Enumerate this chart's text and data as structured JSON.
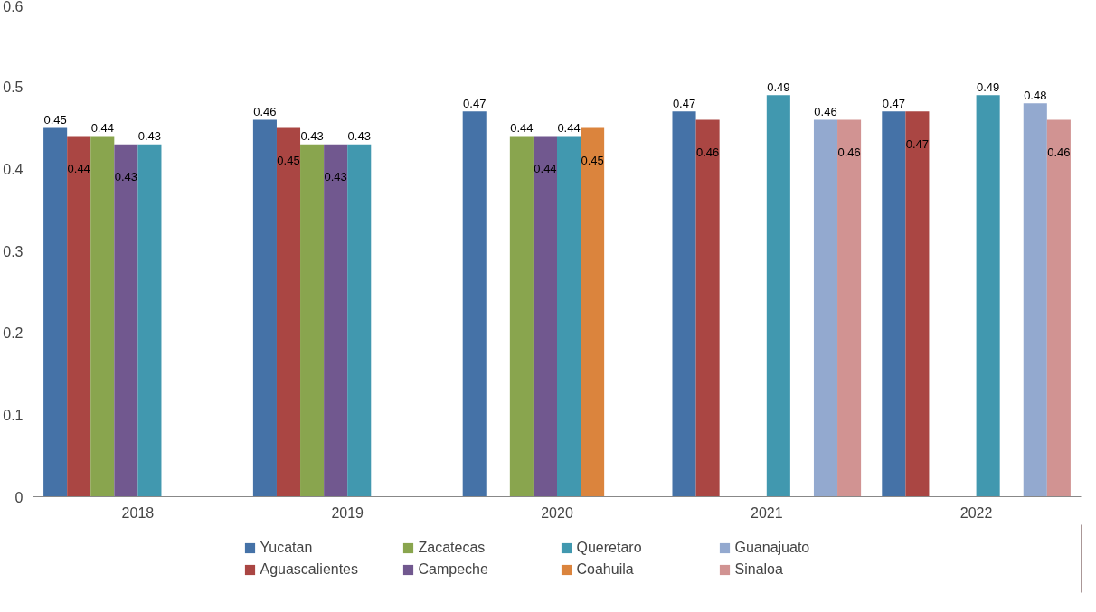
{
  "chart_data": {
    "type": "bar",
    "categories": [
      "2018",
      "2019",
      "2020",
      "2021",
      "2022"
    ],
    "series": [
      {
        "name": "Yucatan",
        "color": "#4572a7",
        "values": [
          0.45,
          0.46,
          0.47,
          0.47,
          0.47
        ]
      },
      {
        "name": "Aguascalientes",
        "color": "#aa4643",
        "values": [
          0.44,
          0.45,
          null,
          0.46,
          0.47
        ]
      },
      {
        "name": "Zacatecas",
        "color": "#89a54e",
        "values": [
          0.44,
          0.43,
          0.44,
          null,
          null
        ]
      },
      {
        "name": "Campeche",
        "color": "#71588f",
        "values": [
          0.43,
          0.43,
          0.44,
          null,
          null
        ]
      },
      {
        "name": "Queretaro",
        "color": "#4198af",
        "values": [
          0.43,
          0.43,
          0.44,
          0.49,
          0.49
        ]
      },
      {
        "name": "Coahuila",
        "color": "#db843d",
        "values": [
          null,
          null,
          0.45,
          null,
          null
        ]
      },
      {
        "name": "Guanajuato",
        "color": "#93a9cf",
        "values": [
          null,
          null,
          null,
          0.46,
          0.48
        ]
      },
      {
        "name": "Sinaloa",
        "color": "#d19392",
        "values": [
          null,
          null,
          null,
          0.46,
          0.46
        ]
      }
    ],
    "ylim": [
      0,
      0.6
    ],
    "yticks": [
      0,
      0.1,
      0.2,
      0.3,
      0.4,
      0.5,
      0.6
    ],
    "data_labels": true,
    "grid": false,
    "legend": "bottom"
  }
}
